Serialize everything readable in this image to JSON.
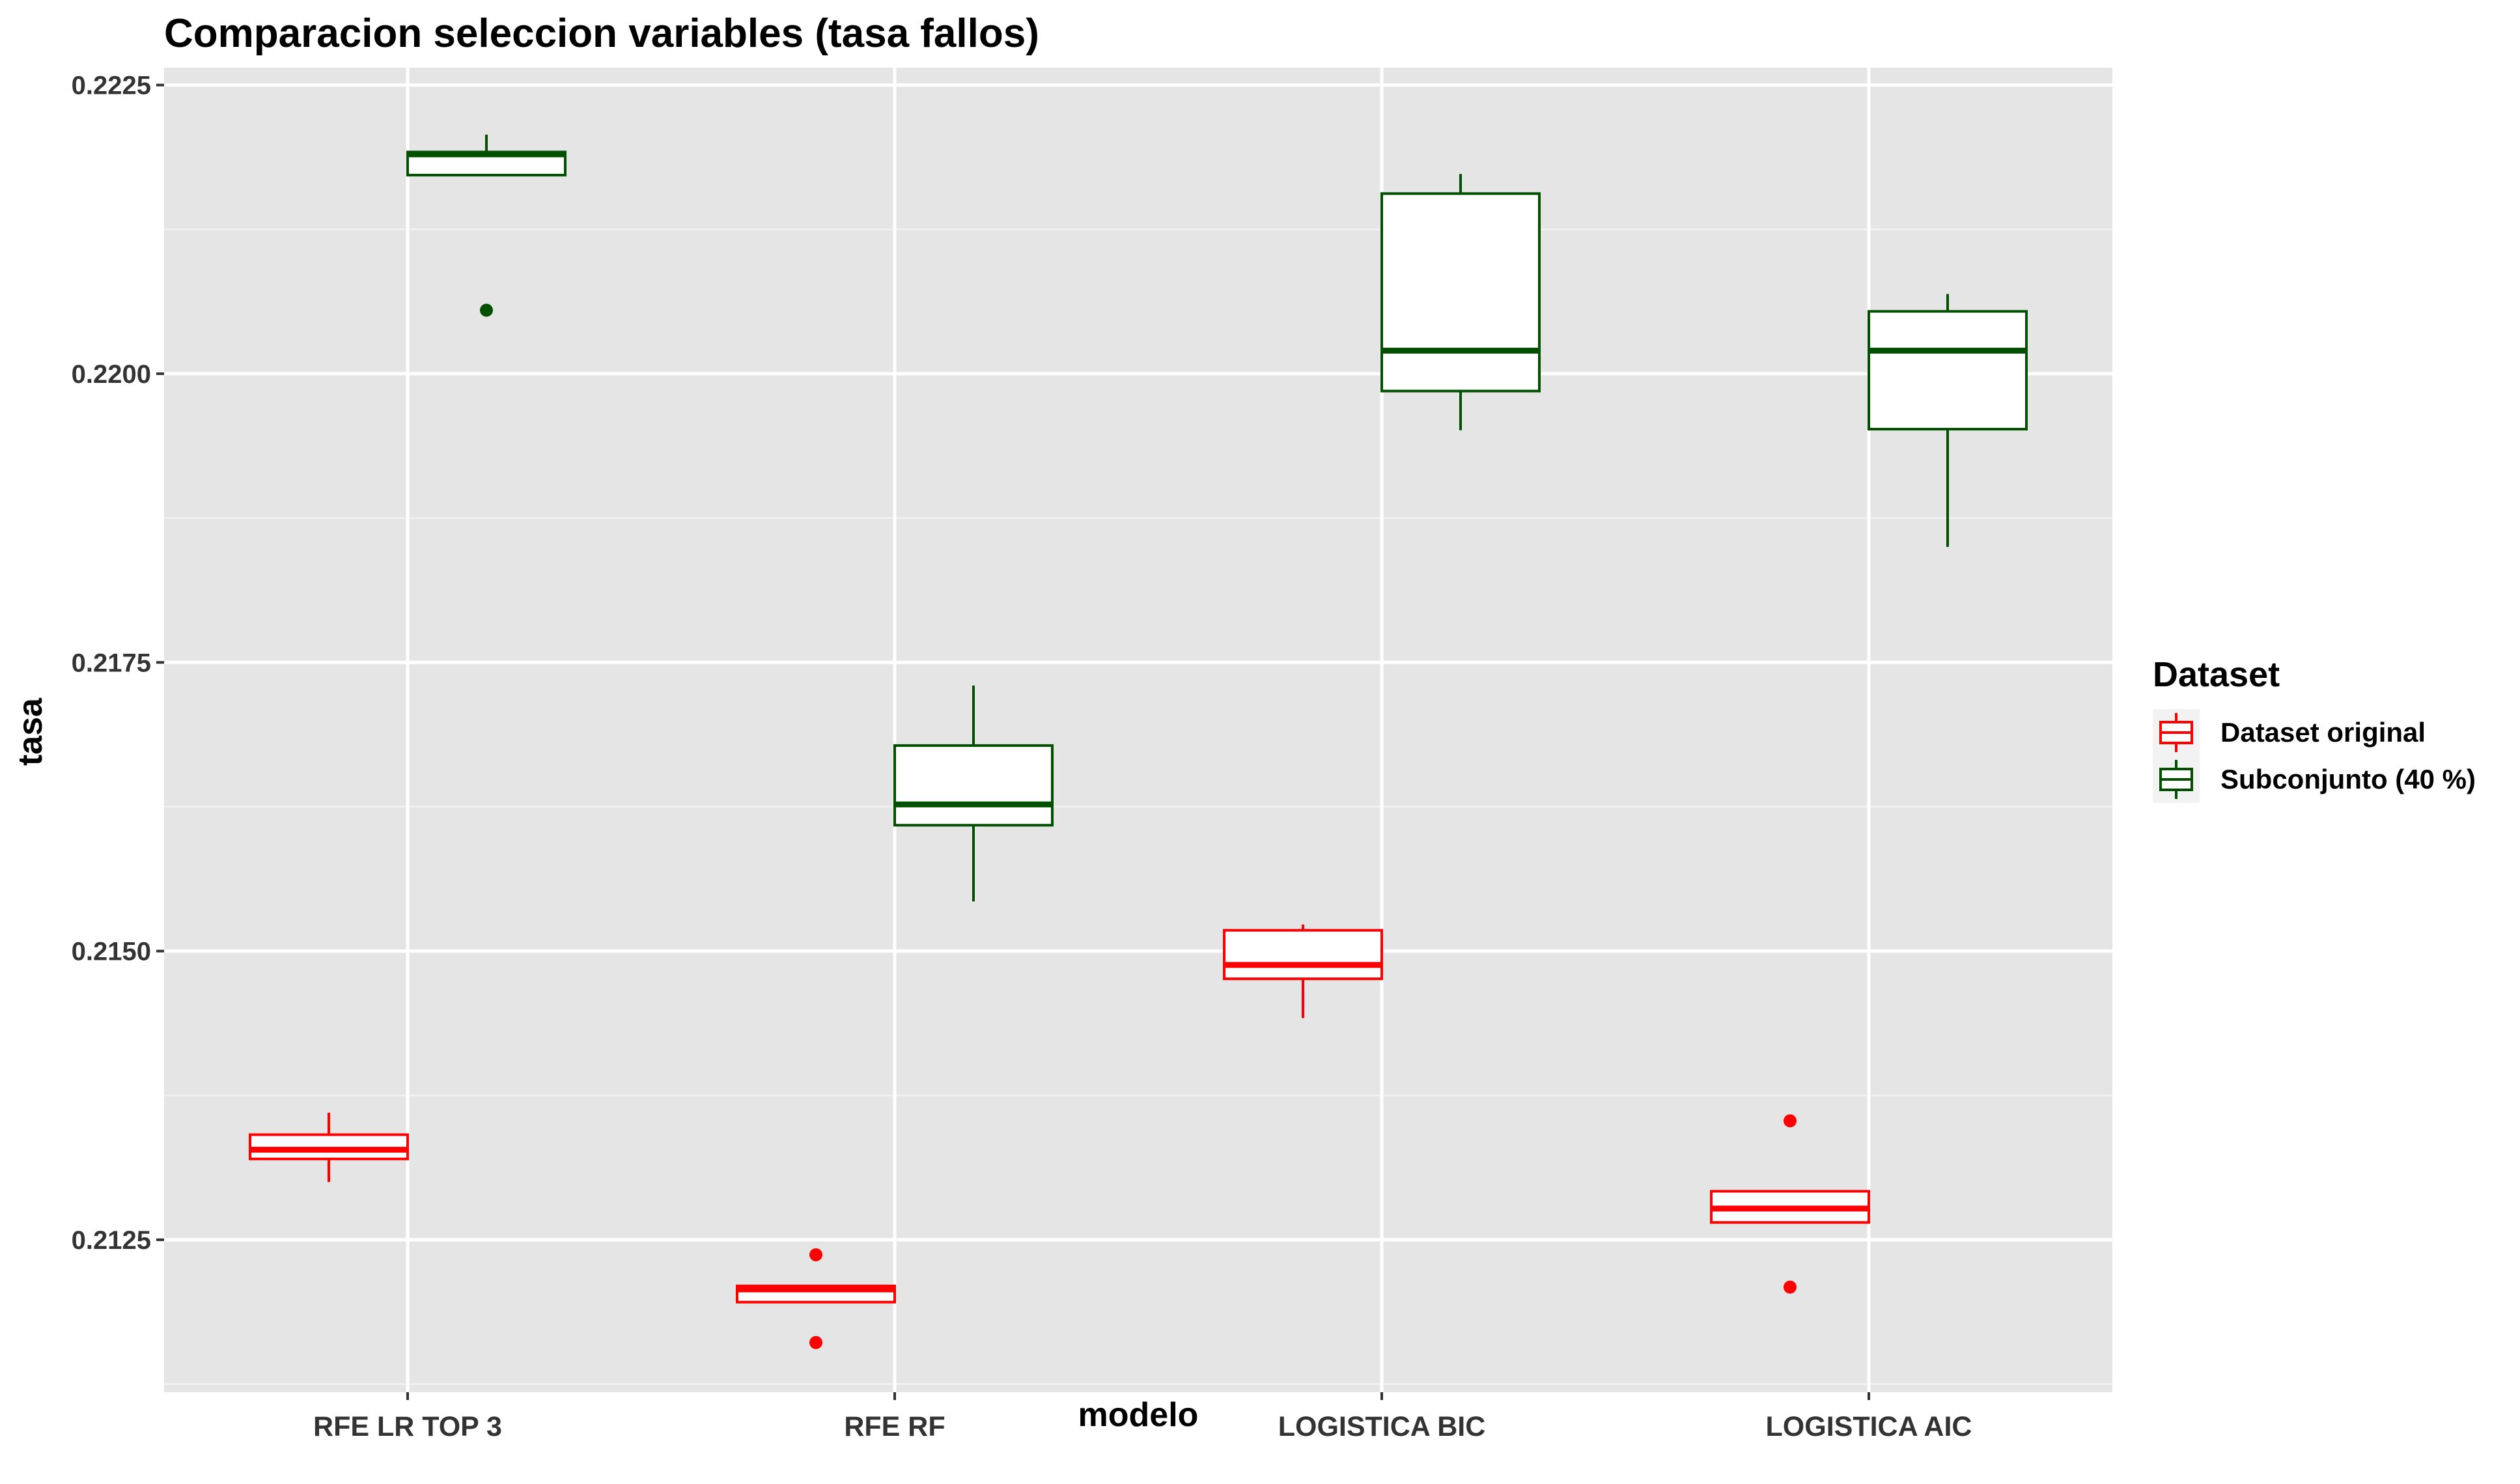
{
  "chart_data": {
    "type": "boxplot",
    "title": "Comparacion seleccion variables (tasa fallos)",
    "xlabel": "modelo",
    "ylabel": "tasa",
    "categories": [
      "RFE LR TOP 3",
      "RFE RF",
      "LOGISTICA BIC",
      "LOGISTICA AIC"
    ],
    "ylim": [
      0.21118,
      0.22265
    ],
    "yticks": [
      0.2125,
      0.215,
      0.2175,
      0.22,
      0.2225
    ],
    "ytick_labels": [
      "0.2125",
      "0.2150",
      "0.2175",
      "0.2200",
      "0.2225"
    ],
    "grid": true,
    "legend": {
      "title": "Dataset",
      "position": "right"
    },
    "series": [
      {
        "name": "Dataset original",
        "color": "#FF0000",
        "boxes": [
          {
            "category": "RFE LR TOP 3",
            "whisker_low": 0.213,
            "q1": 0.2132,
            "median": 0.21328,
            "q3": 0.21341,
            "whisker_high": 0.2136,
            "outliers": []
          },
          {
            "category": "RFE RF",
            "whisker_low": 0.21196,
            "q1": 0.21196,
            "median": 0.21207,
            "q3": 0.2121,
            "whisker_high": 0.2121,
            "outliers": [
              0.21237,
              0.21161
            ]
          },
          {
            "category": "LOGISTICA BIC",
            "whisker_low": 0.21442,
            "q1": 0.21476,
            "median": 0.21488,
            "q3": 0.21518,
            "whisker_high": 0.21523,
            "outliers": []
          },
          {
            "category": "LOGISTICA AIC",
            "whisker_low": 0.21265,
            "q1": 0.21265,
            "median": 0.21277,
            "q3": 0.21292,
            "whisker_high": 0.21292,
            "outliers": [
              0.21353,
              0.21209
            ]
          }
        ]
      },
      {
        "name": "Subconjunto (40 %)",
        "color": "#005000",
        "boxes": [
          {
            "category": "RFE LR TOP 3",
            "whisker_low": 0.22172,
            "q1": 0.22172,
            "median": 0.2219,
            "q3": 0.22192,
            "whisker_high": 0.22207,
            "outliers": [
              0.22055
            ]
          },
          {
            "category": "RFE RF",
            "whisker_low": 0.21543,
            "q1": 0.21609,
            "median": 0.21627,
            "q3": 0.21678,
            "whisker_high": 0.2173,
            "outliers": []
          },
          {
            "category": "LOGISTICA BIC",
            "whisker_low": 0.21951,
            "q1": 0.21985,
            "median": 0.2202,
            "q3": 0.22156,
            "whisker_high": 0.22173,
            "outliers": []
          },
          {
            "category": "LOGISTICA AIC",
            "whisker_low": 0.2185,
            "q1": 0.21952,
            "median": 0.2202,
            "q3": 0.22054,
            "whisker_high": 0.22069,
            "outliers": []
          }
        ]
      }
    ]
  }
}
